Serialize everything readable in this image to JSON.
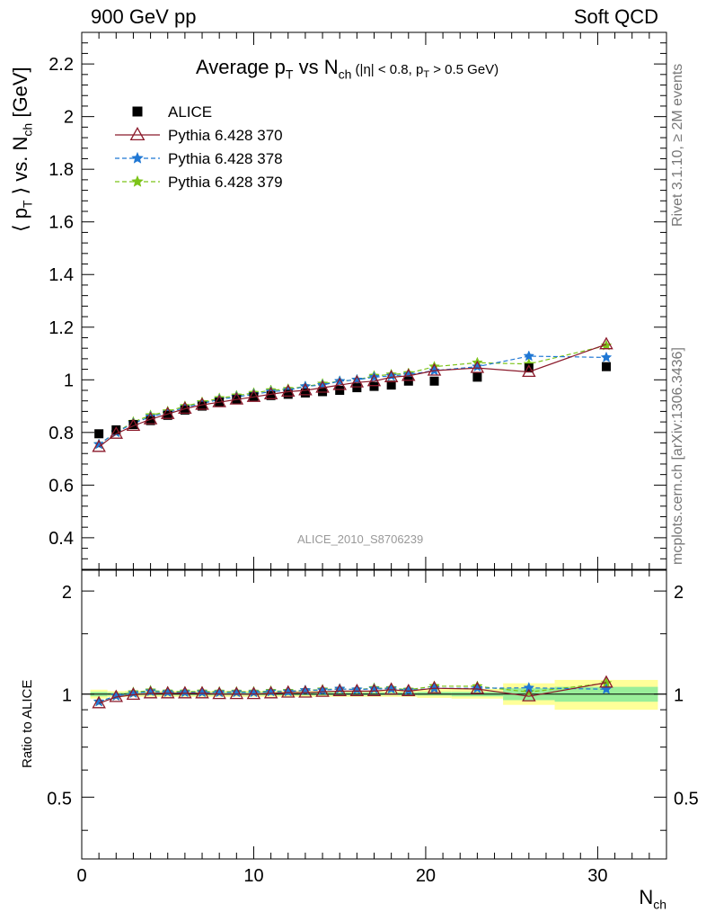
{
  "header": {
    "left": "900 GeV pp",
    "right": "Soft QCD"
  },
  "side_text": {
    "top": "Rivet 3.1.10, ≥ 2M events",
    "bottom": "mcplots.cern.ch [arXiv:1306.3436]"
  },
  "chart_data": {
    "type": "scatter",
    "title": "Average p_T vs N_ch (|η| < 0.8, p_T > 0.5 GeV)",
    "watermark": "ALICE_2010_S8706239",
    "xlabel": "N_ch",
    "ylabel": "⟨ p_T ⟩ vs. N_ch [GeV]",
    "ratio_ylabel": "Ratio to ALICE",
    "xlim": [
      0,
      34
    ],
    "ylim": [
      0.28,
      2.32
    ],
    "ratio_ylim": [
      0.33,
      2.3
    ],
    "ratio_log": true,
    "x_ticks": [
      "0",
      "10",
      "20",
      "30"
    ],
    "y_ticks": [
      "0.4",
      "0.6",
      "0.8",
      "1",
      "1.2",
      "1.4",
      "1.6",
      "1.8",
      "2",
      "2.2"
    ],
    "ratio_ticks": [
      "0.5",
      "1",
      "2"
    ],
    "legend_position": "top-left",
    "x": [
      1,
      2,
      3,
      4,
      5,
      6,
      7,
      8,
      9,
      10,
      11,
      12,
      13,
      14,
      15,
      16,
      17,
      18,
      19,
      20.5,
      23,
      26,
      30.5
    ],
    "series": [
      {
        "name": "ALICE",
        "color": "#000000",
        "marker": "square",
        "values": [
          0.795,
          0.81,
          0.83,
          0.845,
          0.865,
          0.885,
          0.9,
          0.915,
          0.925,
          0.935,
          0.94,
          0.945,
          0.95,
          0.955,
          0.96,
          0.97,
          0.975,
          0.98,
          0.995,
          0.995,
          1.01,
          1.045,
          1.05
        ]
      },
      {
        "name": "Pythia 6.428 370",
        "color": "#8b1a2b",
        "marker": "open-triangle",
        "line": "solid",
        "values": [
          0.745,
          0.795,
          0.825,
          0.85,
          0.87,
          0.89,
          0.905,
          0.915,
          0.925,
          0.935,
          0.945,
          0.955,
          0.96,
          0.97,
          0.98,
          0.99,
          0.995,
          1.01,
          1.015,
          1.035,
          1.045,
          1.03,
          1.135
        ]
      },
      {
        "name": "Pythia 6.428 378",
        "color": "#1f77d4",
        "marker": "star",
        "line": "dashed",
        "values": [
          0.755,
          0.8,
          0.835,
          0.86,
          0.875,
          0.895,
          0.91,
          0.925,
          0.935,
          0.945,
          0.955,
          0.96,
          0.975,
          0.98,
          0.995,
          1.0,
          1.01,
          1.015,
          1.02,
          1.035,
          1.05,
          1.09,
          1.085
        ]
      },
      {
        "name": "Pythia 6.428 379",
        "color": "#7cc318",
        "marker": "star",
        "line": "dashed",
        "values": [
          0.755,
          0.8,
          0.84,
          0.865,
          0.88,
          0.9,
          0.915,
          0.93,
          0.94,
          0.95,
          0.96,
          0.965,
          0.975,
          0.985,
          0.995,
          1.0,
          1.015,
          1.02,
          1.025,
          1.05,
          1.065,
          1.06,
          1.13
        ]
      }
    ],
    "ratio_series": [
      {
        "name": "Pythia 6.428 370",
        "values": [
          0.94,
          0.98,
          0.995,
          1.005,
          1.005,
          1.005,
          1.005,
          1.0,
          1.0,
          1.0,
          1.005,
          1.01,
          1.01,
          1.015,
          1.02,
          1.02,
          1.02,
          1.03,
          1.02,
          1.04,
          1.035,
          0.985,
          1.08
        ]
      },
      {
        "name": "Pythia 6.428 378",
        "values": [
          0.95,
          0.988,
          1.006,
          1.018,
          1.012,
          1.011,
          1.011,
          1.011,
          1.011,
          1.011,
          1.016,
          1.016,
          1.026,
          1.026,
          1.036,
          1.031,
          1.036,
          1.036,
          1.025,
          1.04,
          1.04,
          1.043,
          1.033
        ]
      },
      {
        "name": "Pythia 6.428 379",
        "values": [
          0.95,
          0.988,
          1.012,
          1.024,
          1.017,
          1.017,
          1.017,
          1.016,
          1.016,
          1.016,
          1.021,
          1.021,
          1.026,
          1.031,
          1.036,
          1.031,
          1.041,
          1.041,
          1.03,
          1.055,
          1.054,
          1.014,
          1.076
        ]
      }
    ],
    "uncertainty_bands": [
      {
        "x": [
          0.5,
          1.5
        ],
        "stat": [
          0.985,
          1.015
        ],
        "total": [
          0.97,
          1.03
        ]
      },
      {
        "x": [
          1.5,
          2.5
        ],
        "stat": [
          0.99,
          1.01
        ],
        "total": [
          0.98,
          1.02
        ]
      },
      {
        "x": [
          2.5,
          19.5
        ],
        "stat": [
          0.992,
          1.012
        ],
        "total": [
          0.982,
          1.022
        ]
      },
      {
        "x": [
          19.5,
          21.5
        ],
        "stat": [
          0.99,
          1.015
        ],
        "total": [
          0.975,
          1.035
        ]
      },
      {
        "x": [
          21.5,
          24.5
        ],
        "stat": [
          0.985,
          1.015
        ],
        "total": [
          0.97,
          1.035
        ]
      },
      {
        "x": [
          24.5,
          27.5
        ],
        "stat": [
          0.96,
          1.04
        ],
        "total": [
          0.93,
          1.075
        ]
      },
      {
        "x": [
          27.5,
          33.5
        ],
        "stat": [
          0.95,
          1.05
        ],
        "total": [
          0.9,
          1.1
        ]
      }
    ]
  }
}
